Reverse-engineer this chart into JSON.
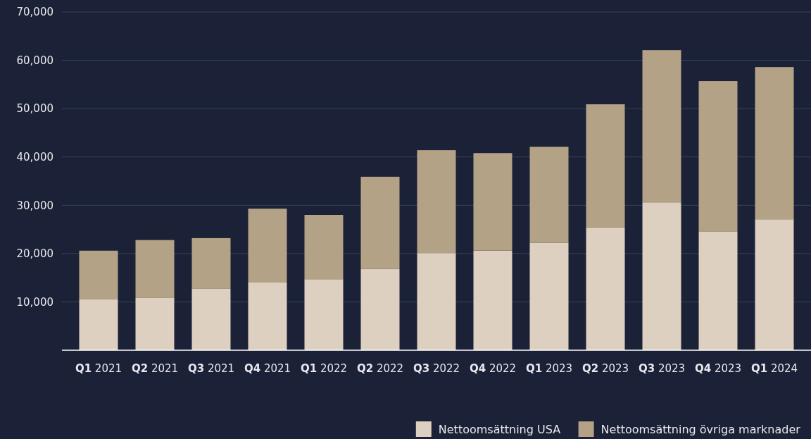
{
  "chart_data": {
    "type": "bar",
    "stacked": true,
    "categories": [
      "Q1 2021",
      "Q2 2021",
      "Q3 2021",
      "Q4 2021",
      "Q1 2022",
      "Q2 2022",
      "Q3 2022",
      "Q4 2022",
      "Q1 2023",
      "Q2 2023",
      "Q3 2023",
      "Q4 2023",
      "Q1 2024"
    ],
    "series": [
      {
        "name": "Nettoomsättning USA",
        "color": "#ddd0c0",
        "values": [
          10500,
          10800,
          12700,
          14000,
          14700,
          16800,
          20100,
          20600,
          22200,
          25400,
          30600,
          24600,
          27100
        ]
      },
      {
        "name": "Nettoomsättning övriga marknader",
        "color": "#b3a286",
        "values": [
          10100,
          12000,
          10500,
          15300,
          13300,
          19100,
          21300,
          20200,
          19900,
          25500,
          31500,
          31100,
          31500
        ]
      }
    ],
    "ylim": [
      0,
      70000
    ],
    "yticks": [
      {
        "value": 10000,
        "label": "10,000"
      },
      {
        "value": 20000,
        "label": "20,000"
      },
      {
        "value": 30000,
        "label": "30,000"
      },
      {
        "value": 40000,
        "label": "40,000"
      },
      {
        "value": 50000,
        "label": "50,000"
      },
      {
        "value": 60000,
        "label": "60,000"
      },
      {
        "value": 70000,
        "label": "70,000"
      }
    ],
    "grid": "y",
    "legend": "bottom right"
  }
}
